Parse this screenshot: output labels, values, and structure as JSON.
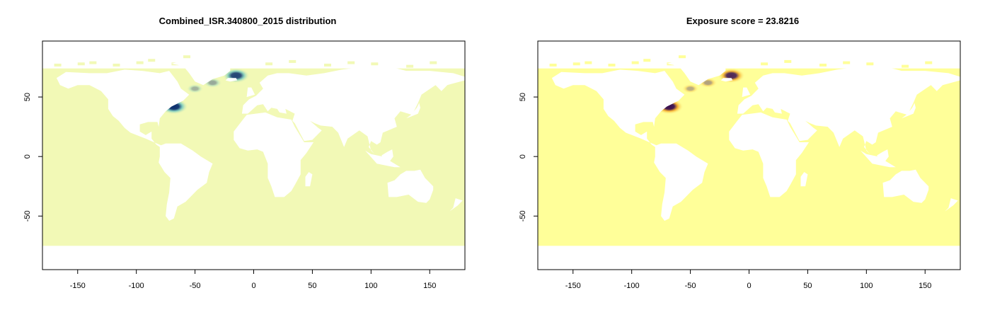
{
  "panels": [
    {
      "title": "Combined_ISR.340800_2015 distribution",
      "palette": "ocean",
      "colors": {
        "ocean": "#f2f9b6",
        "hot_mid": "#6fc6c0",
        "hot_core": "#0b2f6e"
      }
    },
    {
      "title": "Exposure score = 23.8216",
      "palette": "heat",
      "colors": {
        "ocean": "#ffff99",
        "hot_mid": "#f5a623",
        "hot_core": "#3b0f4f"
      }
    }
  ],
  "axes": {
    "x_ticks": [
      -150,
      -100,
      -50,
      0,
      50,
      100,
      150
    ],
    "y_ticks": [
      50,
      0,
      -50
    ],
    "xlim": [
      -180,
      180
    ],
    "ylim": [
      -95,
      97
    ]
  },
  "hotspots": [
    {
      "lon": -68,
      "lat": 42,
      "intensity": 1.0
    },
    {
      "lon": -15,
      "lat": 68,
      "intensity": 0.9
    },
    {
      "lon": -35,
      "lat": 62,
      "intensity": 0.4
    },
    {
      "lon": -50,
      "lat": 57,
      "intensity": 0.25
    }
  ]
}
